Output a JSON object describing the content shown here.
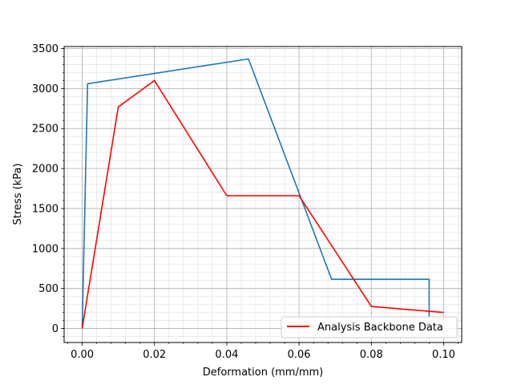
{
  "chart_data": {
    "type": "line",
    "title": "",
    "xlabel": "Deformation (mm/mm)",
    "ylabel": "Stress (kPa)",
    "xlim": [
      -0.005,
      0.105
    ],
    "ylim": [
      -175,
      3525
    ],
    "x_ticks": [
      0.0,
      0.02,
      0.04,
      0.06,
      0.08,
      0.1
    ],
    "x_tick_labels": [
      "0.00",
      "0.02",
      "0.04",
      "0.06",
      "0.08",
      "0.10"
    ],
    "y_ticks": [
      0,
      500,
      1000,
      1500,
      2000,
      2500,
      3000,
      3500
    ],
    "y_tick_labels": [
      "0",
      "500",
      "1000",
      "1500",
      "2000",
      "2500",
      "3000",
      "3500"
    ],
    "grid": true,
    "minor_grid": true,
    "legend_position": "lower right",
    "series": [
      {
        "color": "#1f77b4",
        "x": [
          0.0,
          0.0015,
          0.046,
          0.069,
          0.096,
          0.096
        ],
        "y": [
          0,
          3060,
          3370,
          615,
          615,
          150
        ]
      },
      {
        "name": "Analysis Backbone Data",
        "color": "#ff0000",
        "x": [
          0.0,
          0.01,
          0.02,
          0.04,
          0.06,
          0.08,
          0.1
        ],
        "y": [
          0,
          2770,
          3100,
          1660,
          1660,
          275,
          200
        ]
      }
    ]
  }
}
